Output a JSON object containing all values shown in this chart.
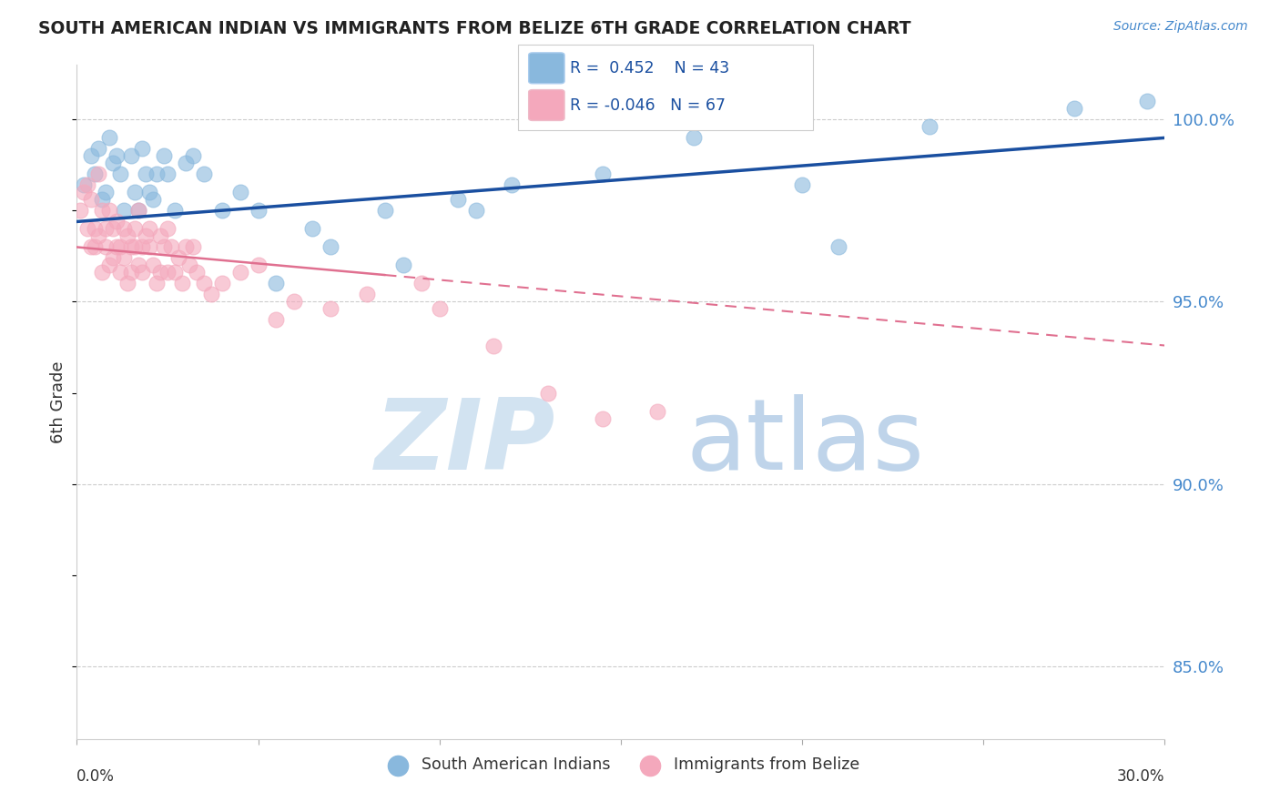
{
  "title": "SOUTH AMERICAN INDIAN VS IMMIGRANTS FROM BELIZE 6TH GRADE CORRELATION CHART",
  "source_text": "Source: ZipAtlas.com",
  "ylabel": "6th Grade",
  "xlim": [
    0.0,
    30.0
  ],
  "ylim": [
    83.0,
    101.5
  ],
  "y_ticks": [
    85.0,
    90.0,
    95.0,
    100.0
  ],
  "y_tick_labels": [
    "85.0%",
    "90.0%",
    "95.0%",
    "100.0%"
  ],
  "legend_r_blue": "R =  0.452",
  "legend_n_blue": "N = 43",
  "legend_r_pink": "R = -0.046",
  "legend_n_pink": "N = 67",
  "blue_color": "#89b8dd",
  "pink_color": "#f4a8bc",
  "blue_line_color": "#1a4fa0",
  "pink_line_color": "#e07090",
  "watermark_zip_color": "#cde0f0",
  "watermark_atlas_color": "#b8d0e8",
  "blue_scatter_x": [
    0.2,
    0.4,
    0.5,
    0.6,
    0.7,
    0.8,
    0.9,
    1.0,
    1.1,
    1.2,
    1.3,
    1.5,
    1.6,
    1.7,
    1.8,
    1.9,
    2.0,
    2.1,
    2.2,
    2.4,
    2.5,
    2.7,
    3.0,
    3.2,
    3.5,
    4.0,
    4.5,
    5.0,
    5.5,
    6.5,
    7.0,
    8.5,
    9.0,
    10.5,
    11.0,
    12.0,
    14.5,
    17.0,
    20.0,
    21.0,
    23.5,
    27.5,
    29.5
  ],
  "blue_scatter_y": [
    98.2,
    99.0,
    98.5,
    99.2,
    97.8,
    98.0,
    99.5,
    98.8,
    99.0,
    98.5,
    97.5,
    99.0,
    98.0,
    97.5,
    99.2,
    98.5,
    98.0,
    97.8,
    98.5,
    99.0,
    98.5,
    97.5,
    98.8,
    99.0,
    98.5,
    97.5,
    98.0,
    97.5,
    95.5,
    97.0,
    96.5,
    97.5,
    96.0,
    97.8,
    97.5,
    98.2,
    98.5,
    99.5,
    98.2,
    96.5,
    99.8,
    100.3,
    100.5
  ],
  "pink_scatter_x": [
    0.1,
    0.2,
    0.3,
    0.3,
    0.4,
    0.4,
    0.5,
    0.5,
    0.6,
    0.6,
    0.7,
    0.7,
    0.8,
    0.8,
    0.9,
    0.9,
    1.0,
    1.0,
    1.1,
    1.1,
    1.2,
    1.2,
    1.3,
    1.3,
    1.4,
    1.4,
    1.5,
    1.5,
    1.6,
    1.6,
    1.7,
    1.7,
    1.8,
    1.8,
    1.9,
    2.0,
    2.0,
    2.1,
    2.2,
    2.3,
    2.3,
    2.4,
    2.5,
    2.5,
    2.6,
    2.7,
    2.8,
    2.9,
    3.0,
    3.1,
    3.2,
    3.3,
    3.5,
    3.7,
    4.0,
    4.5,
    5.0,
    5.5,
    6.0,
    7.0,
    8.0,
    9.5,
    10.0,
    11.5,
    13.0,
    14.5,
    16.0
  ],
  "pink_scatter_y": [
    97.5,
    98.0,
    97.0,
    98.2,
    96.5,
    97.8,
    97.0,
    96.5,
    98.5,
    96.8,
    97.5,
    95.8,
    97.0,
    96.5,
    96.0,
    97.5,
    96.2,
    97.0,
    96.5,
    97.2,
    95.8,
    96.5,
    97.0,
    96.2,
    95.5,
    96.8,
    96.5,
    95.8,
    97.0,
    96.5,
    96.0,
    97.5,
    95.8,
    96.5,
    96.8,
    97.0,
    96.5,
    96.0,
    95.5,
    96.8,
    95.8,
    96.5,
    95.8,
    97.0,
    96.5,
    95.8,
    96.2,
    95.5,
    96.5,
    96.0,
    96.5,
    95.8,
    95.5,
    95.2,
    95.5,
    95.8,
    96.0,
    94.5,
    95.0,
    94.8,
    95.2,
    95.5,
    94.8,
    93.8,
    92.5,
    91.8,
    92.0
  ],
  "pink_solid_x_end": 8.5,
  "blue_line_y_at_0": 97.2,
  "blue_line_y_at_30": 99.5,
  "pink_line_y_at_0": 96.5,
  "pink_line_y_at_30": 93.8
}
